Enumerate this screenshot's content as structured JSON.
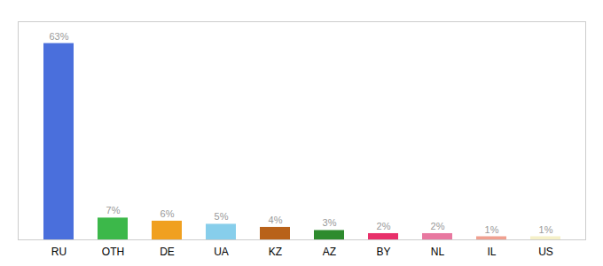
{
  "chart_data": {
    "type": "bar",
    "categories": [
      "RU",
      "OTH",
      "DE",
      "UA",
      "KZ",
      "AZ",
      "BY",
      "NL",
      "IL",
      "US"
    ],
    "values": [
      63,
      7,
      6,
      5,
      4,
      3,
      2,
      2,
      1,
      1
    ],
    "value_labels": [
      "63%",
      "7%",
      "6%",
      "5%",
      "4%",
      "3%",
      "2%",
      "2%",
      "1%",
      "1%"
    ],
    "colors": [
      "#4a6fdc",
      "#3cb84a",
      "#f0a020",
      "#87ceeb",
      "#b8621a",
      "#2e8b2e",
      "#e8306a",
      "#e878a0",
      "#f0a090",
      "#f5f0c8"
    ],
    "ylim": [
      0,
      70
    ],
    "data_labels": true,
    "tick_labels": "x",
    "grid": false
  }
}
